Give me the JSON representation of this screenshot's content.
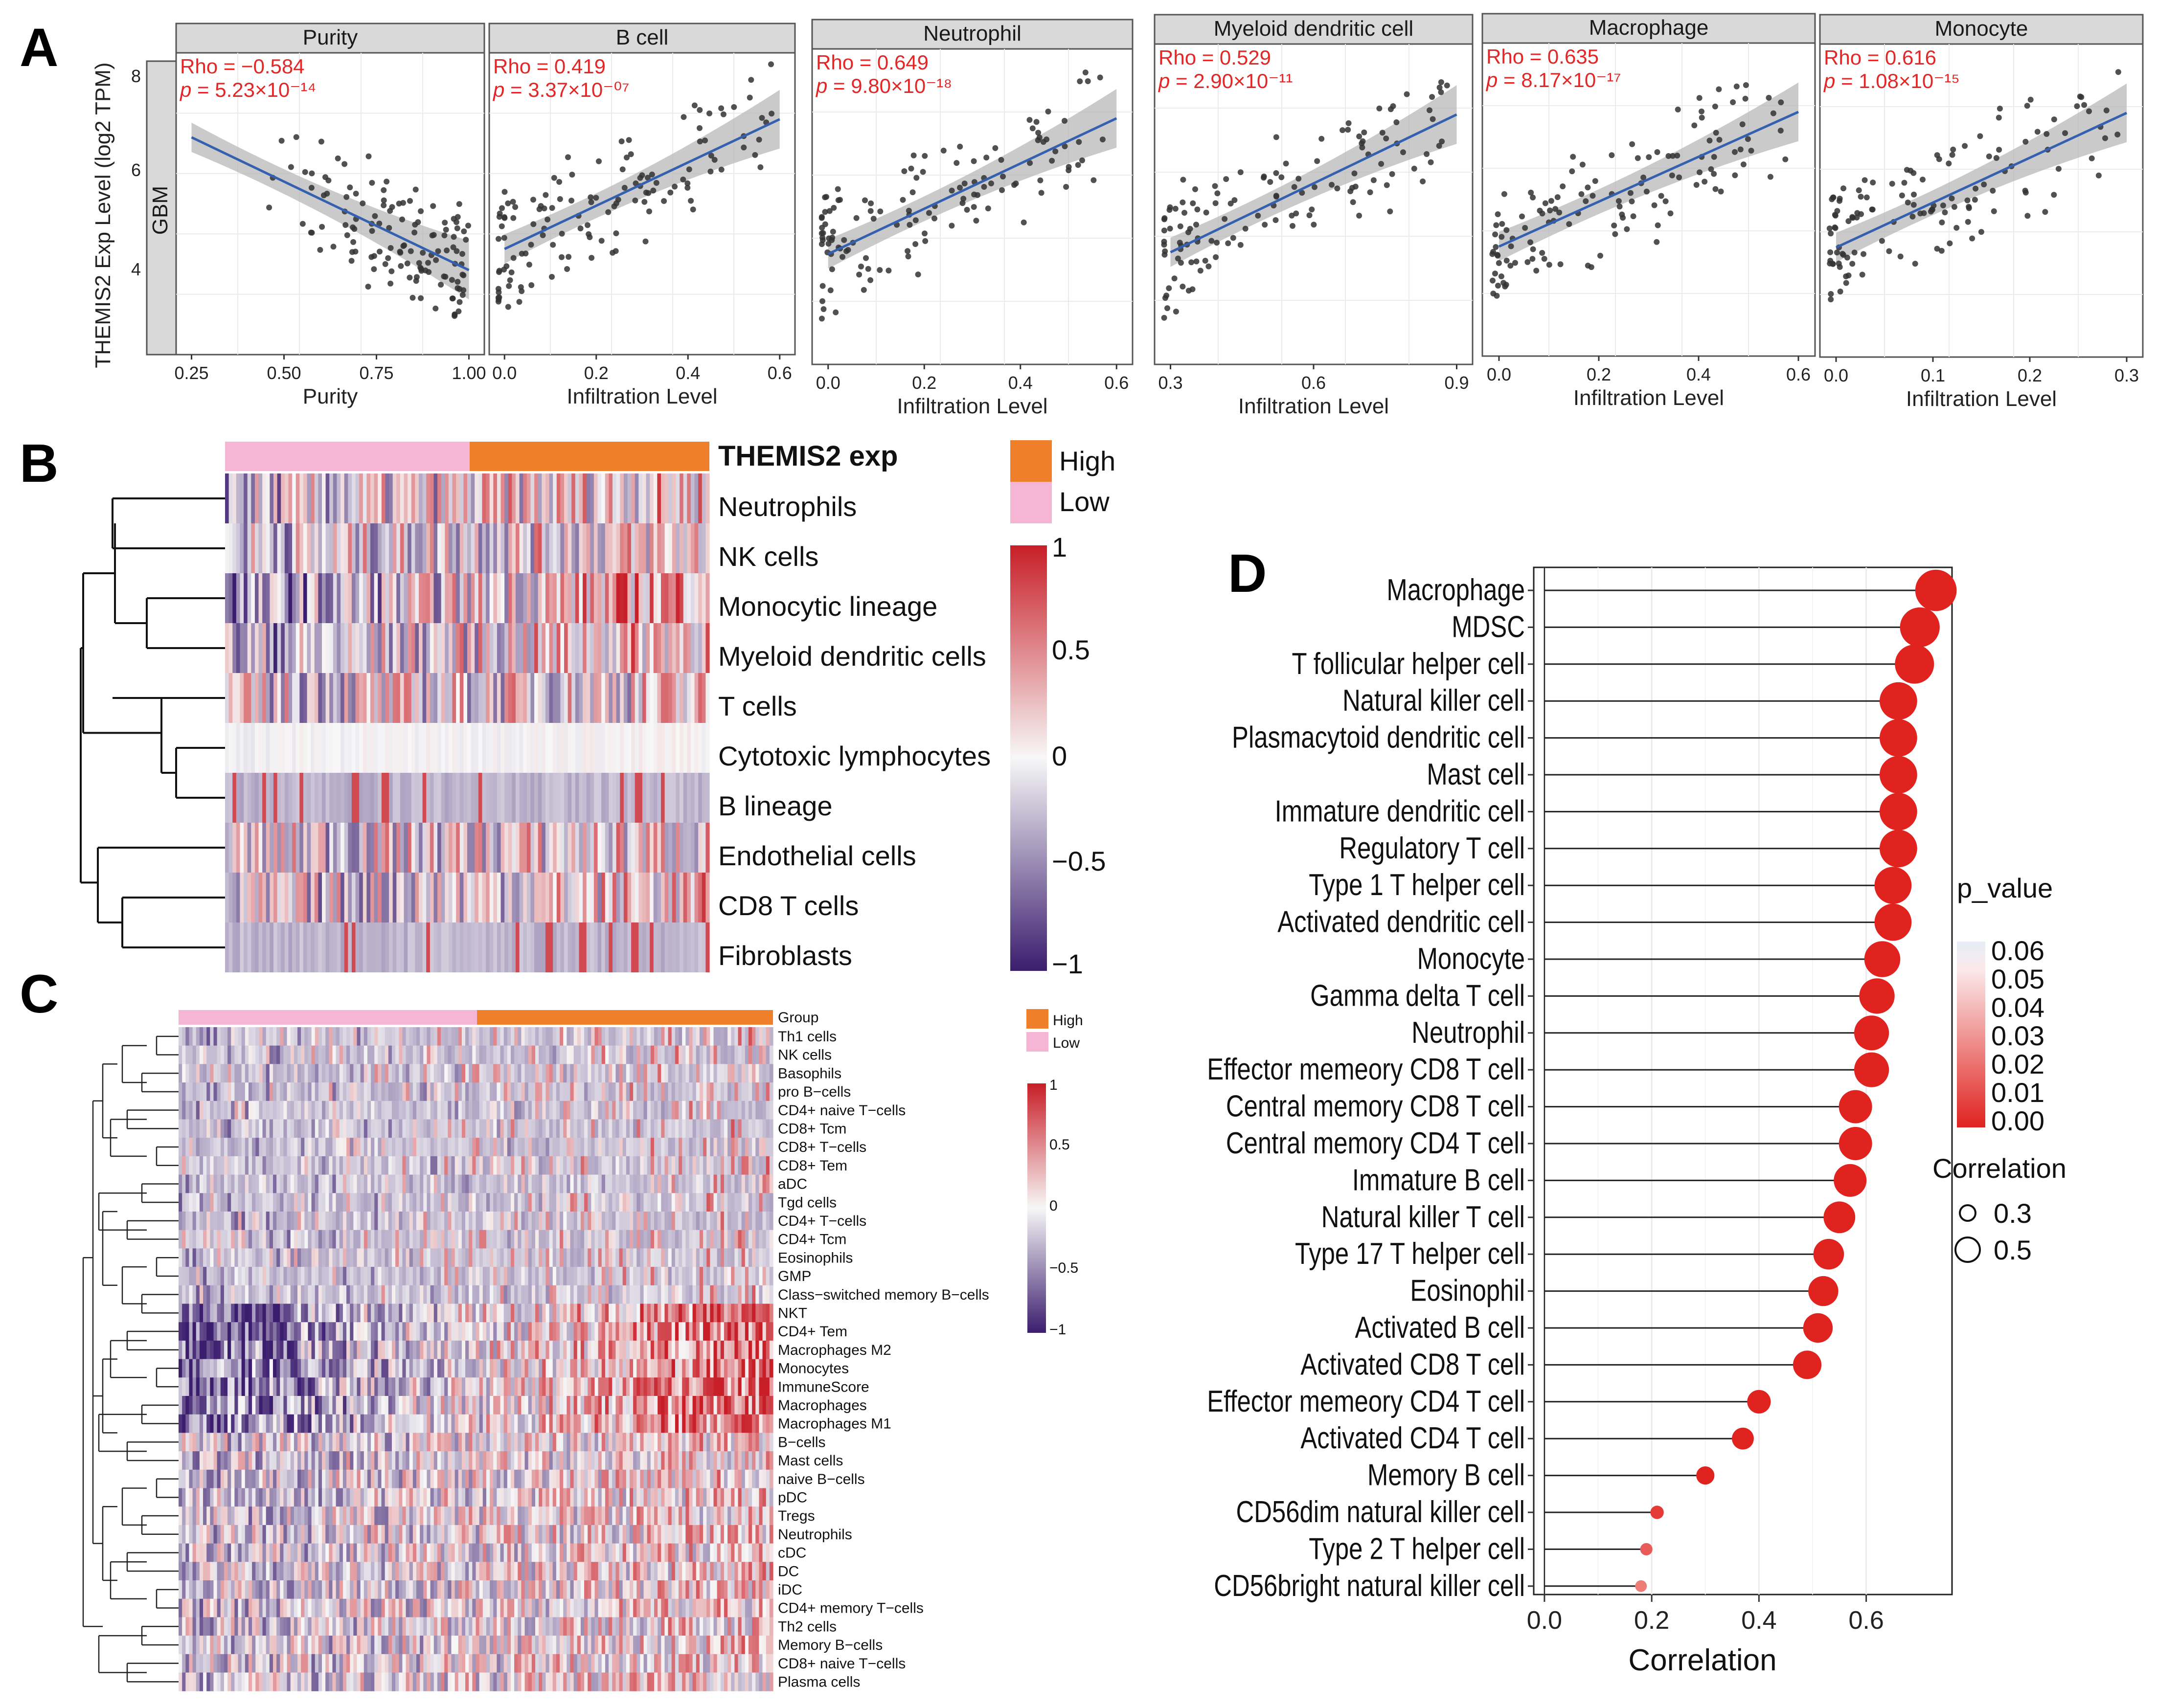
{
  "panel_labels": {
    "a": "A",
    "b": "B",
    "c": "C",
    "d": "D"
  },
  "panel_a": {
    "y_axis_label": "THEMIS2 Exp Level (log2 TPM)",
    "row_label": "GBM",
    "y_ticks": [
      "4",
      "6",
      "8"
    ],
    "plots": [
      {
        "title": "Purity",
        "rho": "Rho = −0.584",
        "p_prefix": "p",
        "p_value": " = 5.23×10⁻¹⁴",
        "xlabel": "Purity",
        "xticks": [
          "0.25",
          "0.50",
          "0.75",
          "1.00"
        ]
      },
      {
        "title": "B cell",
        "rho": "Rho = 0.419",
        "p_prefix": "p",
        "p_value": " = 3.37×10⁻⁰⁷",
        "xlabel": "Infiltration Level",
        "xticks": [
          "0.0",
          "0.2",
          "0.4",
          "0.6"
        ]
      },
      {
        "title": "Neutrophil",
        "rho": "Rho = 0.649",
        "p_prefix": "p",
        "p_value": " = 9.80×10⁻¹⁸",
        "xlabel": "Infiltration Level",
        "xticks": [
          "0.0",
          "0.2",
          "0.4",
          "0.6"
        ]
      },
      {
        "title": "Myeloid dendritic cell",
        "rho": "Rho = 0.529",
        "p_prefix": "p",
        "p_value": " = 2.90×10⁻¹¹",
        "xlabel": "Infiltration Level",
        "xticks": [
          "0.3",
          "0.6",
          "0.9"
        ]
      },
      {
        "title": "Macrophage",
        "rho": "Rho = 0.635",
        "p_prefix": "p",
        "p_value": " = 8.17×10⁻¹⁷",
        "xlabel": "Infiltration Level",
        "xticks": [
          "0.0",
          "0.2",
          "0.4",
          "0.6"
        ]
      },
      {
        "title": "Monocyte",
        "rho": "Rho = 0.616",
        "p_prefix": "p",
        "p_value": " = 1.08×10⁻¹⁵",
        "xlabel": "Infiltration Level",
        "xticks": [
          "0.0",
          "0.1",
          "0.2",
          "0.3"
        ]
      }
    ]
  },
  "panel_b": {
    "annotation_label": "THEMIS2 exp",
    "legend_high": "High",
    "legend_low": "Low",
    "rows": [
      "Neutrophils",
      "NK cells",
      "Monocytic lineage",
      "Myeloid dendritic cells",
      "T cells",
      "Cytotoxic lymphocytes",
      "B lineage",
      "Endothelial cells",
      "CD8 T cells",
      "Fibroblasts"
    ],
    "scale_ticks": [
      "1",
      "0.5",
      "0",
      "−0.5",
      "−1"
    ]
  },
  "panel_c": {
    "annotation_label": "Group",
    "legend_high": "High",
    "legend_low": "Low",
    "rows": [
      "Th1 cells",
      "NK cells",
      "Basophils",
      "pro B−cells",
      "CD4+ naive T−cells",
      "CD8+ Tcm",
      "CD8+ T−cells",
      "CD8+ Tem",
      "aDC",
      "Tgd cells",
      "CD4+ T−cells",
      "CD4+ Tcm",
      "Eosinophils",
      "GMP",
      "Class−switched memory B−cells",
      "NKT",
      "CD4+ Tem",
      "Macrophages M2",
      "Monocytes",
      "ImmuneScore",
      "Macrophages",
      "Macrophages M1",
      "B−cells",
      "Mast cells",
      "naive B−cells",
      "pDC",
      "Tregs",
      "Neutrophils",
      "cDC",
      "DC",
      "iDC",
      "CD4+ memory T−cells",
      "Th2 cells",
      "Memory B−cells",
      "CD8+ naive T−cells",
      "Plasma cells"
    ],
    "scale_ticks": [
      "1",
      "0.5",
      "0",
      "−0.5",
      "−1"
    ]
  },
  "colors": {
    "high": "#f07f2b",
    "low": "#f5b6d6",
    "heat_pos": "#c81e27",
    "heat_neg": "#3b1d6e",
    "heat_mid": "#f7f7f7",
    "fit_line": "#3560b0",
    "ci_band": "#b8b8b8",
    "stat_text": "#e32626",
    "strip_bg": "#d9d9d9",
    "dot_red": "#e0231f"
  },
  "chart_data": {
    "type": "scatter",
    "title": "",
    "xlabel": "Correlation",
    "ylabel": "",
    "xlim": [
      -0.02,
      0.76
    ],
    "xticks": [
      "0.0",
      "0.2",
      "0.4",
      "0.6"
    ],
    "categories": [
      "Macrophage",
      "MDSC",
      "T follicular helper cell",
      "Natural killer cell",
      "Plasmacytoid dendritic cell",
      "Mast cell",
      "Immature dendritic cell",
      "Regulatory T cell",
      "Type 1 T helper cell",
      "Activated dendritic cell",
      "Monocyte",
      "Gamma delta T cell",
      "Neutrophil",
      "Effector memeory CD8 T cell",
      "Central memory CD8 T cell",
      "Central memory CD4 T cell",
      "Immature  B cell",
      "Natural killer T cell",
      "Type 17 T helper cell",
      "Eosinophil",
      "Activated B cell",
      "Activated CD8 T cell",
      "Effector memeory CD4 T cell",
      "Activated CD4 T cell",
      "Memory B cell",
      "CD56dim natural killer cell",
      "Type 2 T helper cell",
      "CD56bright natural killer cell"
    ],
    "values": [
      0.73,
      0.7,
      0.69,
      0.66,
      0.66,
      0.66,
      0.66,
      0.66,
      0.65,
      0.65,
      0.63,
      0.62,
      0.61,
      0.61,
      0.58,
      0.58,
      0.57,
      0.55,
      0.53,
      0.52,
      0.51,
      0.49,
      0.4,
      0.37,
      0.3,
      0.21,
      0.19,
      0.18
    ],
    "p_values": [
      0,
      0,
      0,
      0,
      0,
      0,
      0,
      0,
      0,
      0,
      0,
      0,
      0,
      0,
      0,
      0,
      0,
      0,
      0,
      0,
      0,
      0,
      0,
      0,
      0,
      0.002,
      0.005,
      0.008
    ],
    "legend": {
      "color_title": "p_value",
      "color_ticks": [
        "0.06",
        "0.05",
        "0.04",
        "0.03",
        "0.02",
        "0.01",
        "0.00"
      ],
      "size_title": "Correlation",
      "size_entries": [
        "0.3",
        "0.5"
      ]
    }
  }
}
